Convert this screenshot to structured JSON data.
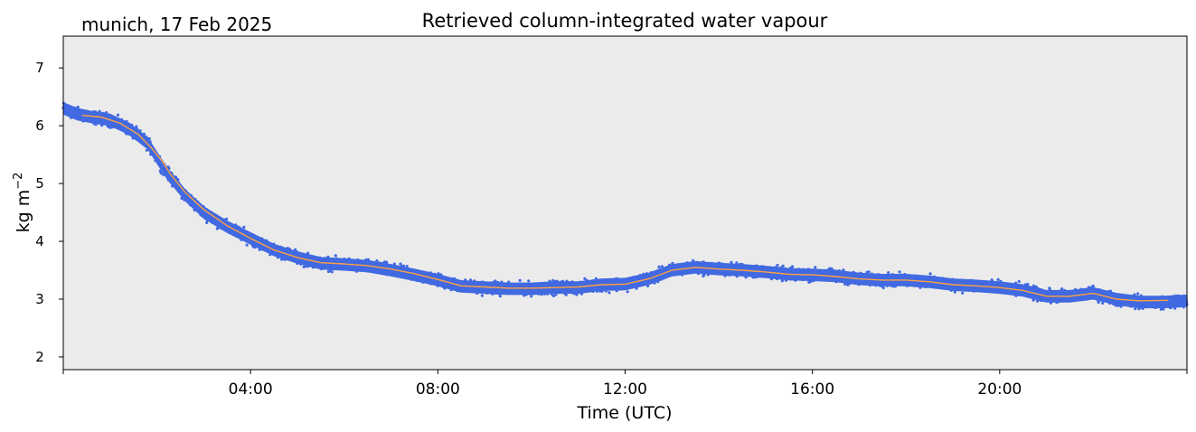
{
  "chart_data": {
    "type": "scatter",
    "title": "Retrieved column-integrated water vapour",
    "subtitle": "munich, 17 Feb 2025",
    "xlabel": "Time (UTC)",
    "ylabel": "kg m",
    "ylabel_superscript": "−2",
    "xlim": [
      0,
      24
    ],
    "ylim": [
      1.78,
      7.55
    ],
    "xticks": [
      {
        "value": 0,
        "label": ""
      },
      {
        "value": 4,
        "label": "04:00"
      },
      {
        "value": 8,
        "label": "08:00"
      },
      {
        "value": 12,
        "label": "12:00"
      },
      {
        "value": 16,
        "label": "16:00"
      },
      {
        "value": 20,
        "label": "20:00"
      },
      {
        "value": 24,
        "label": ""
      }
    ],
    "yticks": [
      {
        "value": 2,
        "label": "2"
      },
      {
        "value": 3,
        "label": "3"
      },
      {
        "value": 4,
        "label": "4"
      },
      {
        "value": 5,
        "label": "5"
      },
      {
        "value": 6,
        "label": "6"
      },
      {
        "value": 7,
        "label": "7"
      }
    ],
    "grid": false,
    "background_color": "#ebebeb",
    "series": [
      {
        "kind": "scatter-band",
        "color": "#4169e1",
        "spread": 0.12,
        "x": [
          0.0,
          0.3,
          0.6,
          1.0,
          1.4,
          1.8,
          2.2,
          2.6,
          3.0,
          3.5,
          4.0,
          4.5,
          5.0,
          5.5,
          6.0,
          6.5,
          7.0,
          7.5,
          8.0,
          8.5,
          9.0,
          9.5,
          10.0,
          10.5,
          11.0,
          11.5,
          12.0,
          12.5,
          13.0,
          13.5,
          14.0,
          14.5,
          15.0,
          15.5,
          16.0,
          16.5,
          17.0,
          17.5,
          18.0,
          18.5,
          19.0,
          19.5,
          20.0,
          20.5,
          21.0,
          21.5,
          22.0,
          22.5,
          23.0,
          23.5,
          24.0
        ],
        "y": [
          6.3,
          6.2,
          6.15,
          6.1,
          5.95,
          5.7,
          5.2,
          4.8,
          4.5,
          4.25,
          4.05,
          3.85,
          3.72,
          3.62,
          3.6,
          3.57,
          3.5,
          3.42,
          3.33,
          3.22,
          3.2,
          3.18,
          3.18,
          3.2,
          3.2,
          3.25,
          3.26,
          3.35,
          3.5,
          3.55,
          3.52,
          3.5,
          3.47,
          3.43,
          3.42,
          3.4,
          3.35,
          3.33,
          3.33,
          3.3,
          3.25,
          3.23,
          3.2,
          3.15,
          3.05,
          3.05,
          3.1,
          3.0,
          2.95,
          2.95,
          2.97
        ]
      },
      {
        "kind": "line",
        "color": "#ffa040",
        "x": [
          0.4,
          0.8,
          1.2,
          1.6,
          1.9,
          2.1,
          2.3,
          2.6,
          3.0,
          3.5,
          4.0,
          4.5,
          5.0,
          5.5,
          6.0,
          6.5,
          7.0,
          7.5,
          8.0,
          8.5,
          9.0,
          9.5,
          10.0,
          10.5,
          11.0,
          11.5,
          12.0,
          12.5,
          13.0,
          13.5,
          14.0,
          14.5,
          15.0,
          15.5,
          16.0,
          16.5,
          17.0,
          17.5,
          18.0,
          18.5,
          19.0,
          19.5,
          20.0,
          20.5,
          21.0,
          21.5,
          22.0,
          22.5,
          23.0,
          23.6
        ],
        "y": [
          6.18,
          6.15,
          6.05,
          5.85,
          5.6,
          5.4,
          5.15,
          4.85,
          4.55,
          4.27,
          4.05,
          3.85,
          3.72,
          3.63,
          3.61,
          3.58,
          3.52,
          3.44,
          3.34,
          3.23,
          3.21,
          3.19,
          3.19,
          3.2,
          3.21,
          3.25,
          3.26,
          3.35,
          3.5,
          3.55,
          3.52,
          3.5,
          3.47,
          3.43,
          3.42,
          3.39,
          3.35,
          3.33,
          3.33,
          3.3,
          3.25,
          3.23,
          3.2,
          3.15,
          3.05,
          3.05,
          3.1,
          3.0,
          2.97,
          2.98
        ]
      }
    ]
  }
}
